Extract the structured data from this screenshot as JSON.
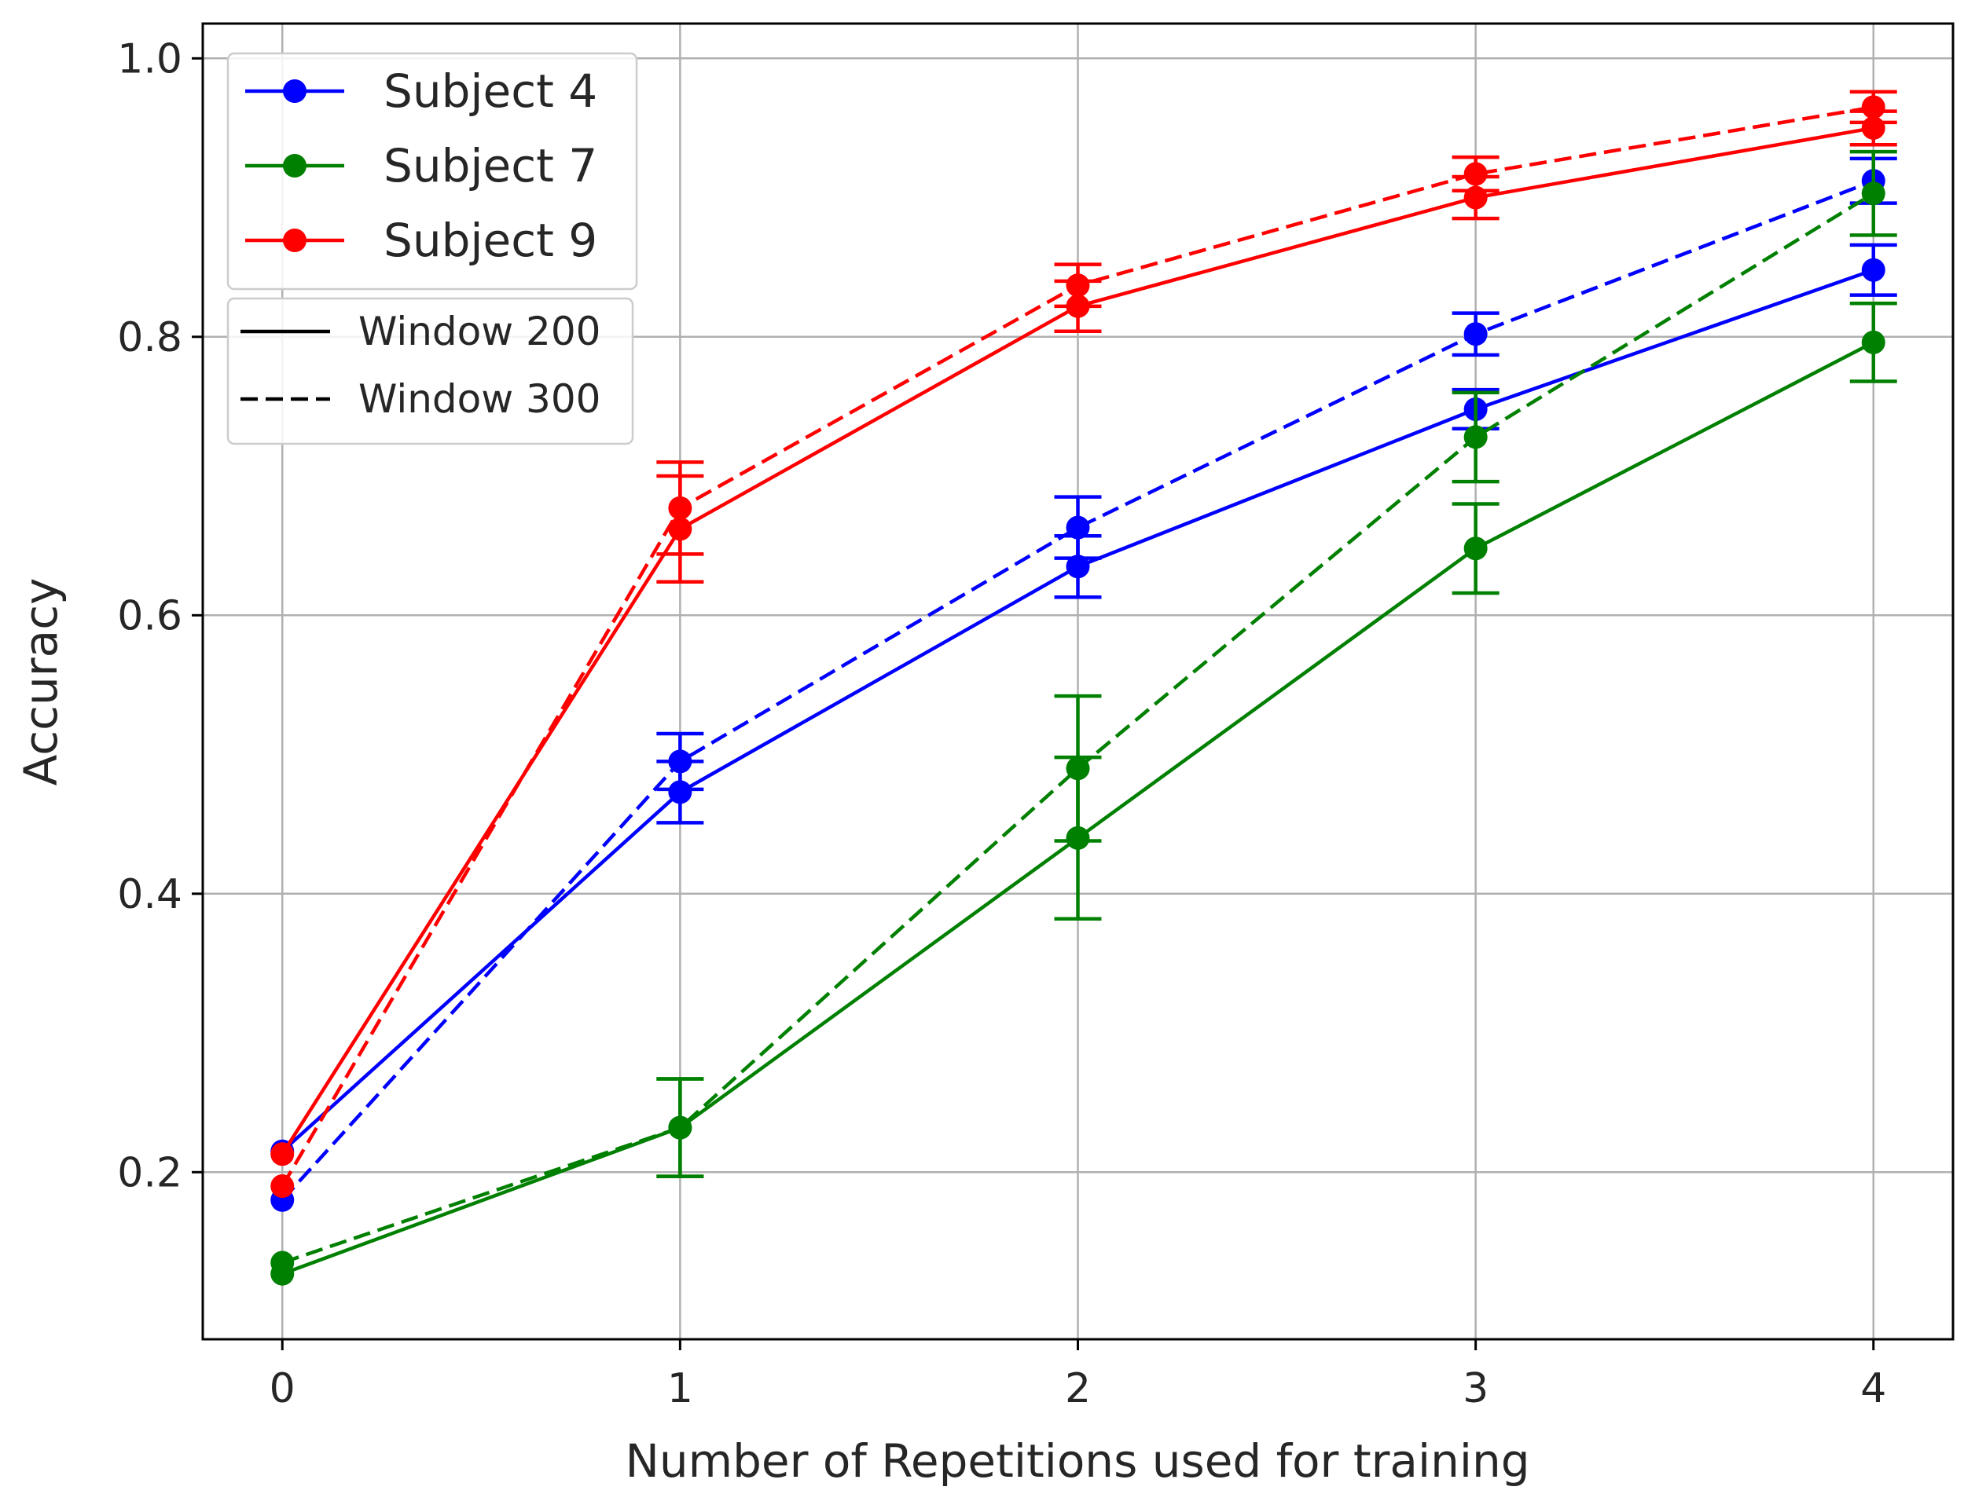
{
  "chart_data": {
    "type": "line",
    "title": "",
    "xlabel": "Number of Repetitions used for training",
    "ylabel": "Accuracy",
    "xlim": [
      -0.2,
      4.2
    ],
    "ylim": [
      0.08,
      1.025
    ],
    "x": [
      0,
      1,
      2,
      3,
      4
    ],
    "xticks": [
      "0",
      "1",
      "2",
      "3",
      "4"
    ],
    "yticks": [
      {
        "value": 0.2,
        "label": "0.2"
      },
      {
        "value": 0.4,
        "label": "0.4"
      },
      {
        "value": 0.6,
        "label": "0.6"
      },
      {
        "value": 0.8,
        "label": "0.8"
      },
      {
        "value": 1.0,
        "label": "1.0"
      }
    ],
    "grid": true,
    "legend_placement": "top-left",
    "legend_subjects": [
      {
        "label": "Subject 4",
        "color": "#0000ff"
      },
      {
        "label": "Subject 7",
        "color": "#008000"
      },
      {
        "label": "Subject 9",
        "color": "#ff0000"
      }
    ],
    "legend_windows": [
      {
        "label": "Window 200",
        "style": "solid"
      },
      {
        "label": "Window 300",
        "style": "dashed"
      }
    ],
    "series": [
      {
        "subject": "Subject 4",
        "window": "Window 200",
        "color": "#0000ff",
        "dashed": false,
        "values": [
          0.215,
          0.473,
          0.635,
          0.748,
          0.848
        ],
        "errors": [
          0.0,
          0.022,
          0.022,
          0.014,
          0.018
        ]
      },
      {
        "subject": "Subject 4",
        "window": "Window 300",
        "color": "#0000ff",
        "dashed": true,
        "values": [
          0.18,
          0.495,
          0.663,
          0.802,
          0.912
        ],
        "errors": [
          0.0,
          0.02,
          0.022,
          0.015,
          0.016
        ]
      },
      {
        "subject": "Subject 7",
        "window": "Window 200",
        "color": "#008000",
        "dashed": false,
        "values": [
          0.127,
          0.232,
          0.44,
          0.648,
          0.796
        ],
        "errors": [
          0.0,
          0.035,
          0.058,
          0.032,
          0.028
        ]
      },
      {
        "subject": "Subject 7",
        "window": "Window 300",
        "color": "#008000",
        "dashed": true,
        "values": [
          0.135,
          0.232,
          0.49,
          0.728,
          0.903
        ],
        "errors": [
          0.0,
          0.035,
          0.052,
          0.032,
          0.03
        ]
      },
      {
        "subject": "Subject 9",
        "window": "Window 200",
        "color": "#ff0000",
        "dashed": false,
        "values": [
          0.213,
          0.662,
          0.822,
          0.9,
          0.95
        ],
        "errors": [
          0.0,
          0.038,
          0.018,
          0.015,
          0.012
        ]
      },
      {
        "subject": "Subject 9",
        "window": "Window 300",
        "color": "#ff0000",
        "dashed": true,
        "values": [
          0.19,
          0.677,
          0.837,
          0.917,
          0.965
        ],
        "errors": [
          0.0,
          0.033,
          0.015,
          0.012,
          0.011
        ]
      }
    ]
  }
}
